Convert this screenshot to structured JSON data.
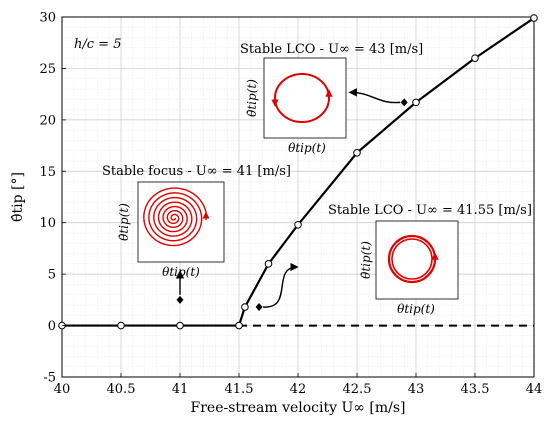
{
  "chart_data": {
    "type": "line",
    "xlabel": "Free-stream velocity U∞ [m/s]",
    "ylabel": "θ̂tip [°]",
    "xlim": [
      40,
      44
    ],
    "ylim": [
      -5,
      30
    ],
    "grid": "on",
    "xticks": [
      40,
      40.5,
      41,
      41.5,
      42,
      42.5,
      43,
      43.5,
      44
    ],
    "yticks": [
      -5,
      0,
      5,
      10,
      15,
      20,
      25,
      30
    ],
    "ratio_label": "h/c = 5",
    "series": [
      {
        "values": [
          [
            40,
            0
          ],
          [
            40.5,
            0
          ],
          [
            41,
            0
          ],
          [
            41.5,
            0
          ],
          [
            41.55,
            1.8
          ],
          [
            41.75,
            6.0
          ],
          [
            42,
            9.8
          ],
          [
            42.5,
            16.8
          ],
          [
            43,
            21.7
          ],
          [
            43.5,
            26.0
          ],
          [
            44,
            29.9
          ]
        ]
      }
    ],
    "unstable_branch": {
      "values": [
        [
          41.5,
          0
        ],
        [
          44,
          0
        ]
      ],
      "style": "dashed"
    },
    "annotations": [
      {
        "title": "Stable focus - U∞ = 41 [m/s]",
        "xlabel": "θtip(t)",
        "ylabel": "θ̇tip(t)",
        "pattern": "spiral",
        "marker": [
          41,
          2.5
        ],
        "arrow": "up"
      },
      {
        "title": "Stable LCO - U∞ = 41.55 [m/s]",
        "xlabel": "θtip(t)",
        "ylabel": "θ̇tip(t)",
        "pattern": "converging-ring",
        "marker": [
          41.67,
          1.8
        ],
        "arrow": "curved"
      },
      {
        "title": "Stable LCO - U∞ = 43 [m/s]",
        "xlabel": "θtip(t)",
        "ylabel": "θ̇tip(t)",
        "pattern": "ellipse",
        "marker": [
          42.9,
          21.7
        ],
        "arrow": "curved"
      }
    ]
  }
}
